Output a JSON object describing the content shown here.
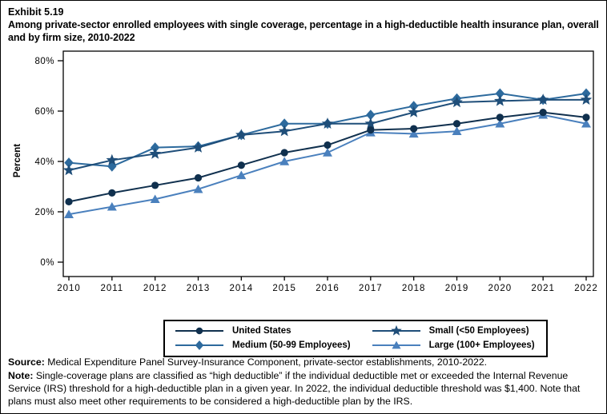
{
  "exhibit": {
    "number": "Exhibit 5.19",
    "title": "Among private-sector enrolled employees with single coverage, percentage in a high-deductible health insurance plan, overall and by firm size, 2010-2022"
  },
  "chart_data": {
    "type": "line",
    "x": [
      2010,
      2011,
      2012,
      2013,
      2014,
      2015,
      2016,
      2017,
      2018,
      2019,
      2020,
      2021,
      2022
    ],
    "ylabel": "Percent",
    "ylim": [
      0,
      80
    ],
    "yticks": [
      0,
      20,
      40,
      60,
      80
    ],
    "ytick_labels": [
      "0%",
      "20%",
      "40%",
      "60%",
      "80%"
    ],
    "grid": false,
    "legend_position": "bottom",
    "series": [
      {
        "name": "United States",
        "marker": "circle",
        "color": "#10304e",
        "values": [
          24,
          27.5,
          30.5,
          33.5,
          38.5,
          43.5,
          46.5,
          52.5,
          53,
          55,
          57.5,
          59.5,
          57.5
        ]
      },
      {
        "name": "Medium (50-99 Employees)",
        "marker": "diamond",
        "color": "#2d6a9d",
        "values": [
          39.5,
          38,
          45.5,
          46,
          50.5,
          55,
          55,
          58.5,
          62,
          65,
          67,
          64.5,
          67
        ]
      },
      {
        "name": "Small (<50 Employees)",
        "marker": "star",
        "color": "#1f4e79",
        "values": [
          36.5,
          40.5,
          43,
          45.5,
          50.5,
          52,
          55,
          55,
          59.5,
          63.5,
          64,
          64.5,
          64.5
        ]
      },
      {
        "name": "Large (100+ Employees)",
        "marker": "triangle",
        "color": "#4a80bd",
        "values": [
          19,
          22,
          25,
          29,
          34.5,
          40,
          43.5,
          51.5,
          51,
          52,
          55,
          58.5,
          55
        ]
      }
    ],
    "draw_order": [
      1,
      3,
      2,
      0
    ]
  },
  "footer": {
    "source_label": "Source:",
    "source_text": " Medical Expenditure Panel Survey-Insurance Component, private-sector establishments, 2010-2022.",
    "note_label": "Note:",
    "note_text": " Single-coverage plans are classified as “high deductible” if the individual deductible met or exceeded the Internal Revenue Service (IRS) threshold for a high-deductible plan in a given year. In 2022, the individual deductible threshold was $1,400. Note that plans must also meet other requirements to be considered a high-deductible plan by the IRS."
  }
}
